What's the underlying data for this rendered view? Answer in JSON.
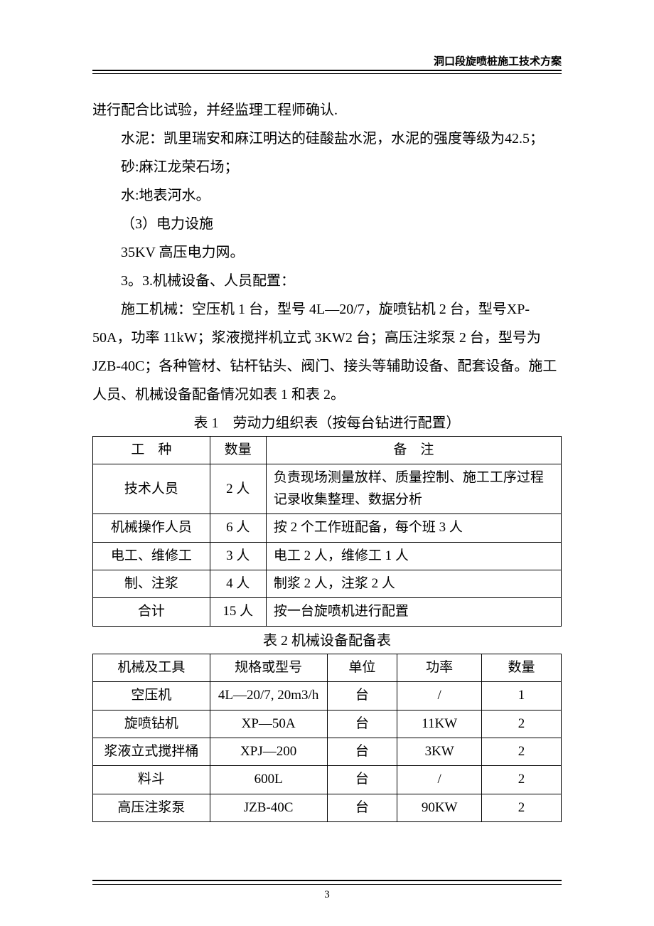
{
  "header": {
    "title": "洞口段旋喷桩施工技术方案"
  },
  "paragraphs": {
    "p1": "进行配合比试验，并经监理工程师确认.",
    "p2": "水泥：凯里瑞安和麻江明达的硅酸盐水泥，水泥的强度等级为42.5；",
    "p3": "砂:麻江龙荣石场；",
    "p4": "水:地表河水。",
    "p5": "（3）电力设施",
    "p6": "35KV 高压电力网。",
    "p7": "3。3.机械设备、人员配置：",
    "p8": "施工机械：空压机 1 台，型号 4L—20/7，旋喷钻机 2 台，型号XP-50A，功率 11kW；浆液搅拌机立式 3KW2 台；高压注浆泵 2 台，型号为 JZB-40C；各种管材、钻杆钻头、阀门、接头等辅助设备、配套设备。施工人员、机械设备配备情况如表 1 和表 2。"
  },
  "table1": {
    "caption": "表 1　劳动力组织表（按每台钻进行配置）",
    "headers": {
      "h1": "工　种",
      "h2": "数量",
      "h3": "备　注"
    },
    "rows": [
      {
        "type": "技术人员",
        "qty": "2 人",
        "remark": "负责现场测量放样、质量控制、施工工序过程记录收集整理、数据分析"
      },
      {
        "type": "机械操作人员",
        "qty": "6 人",
        "remark": "按 2 个工作班配备，每个班 3 人"
      },
      {
        "type": "电工、维修工",
        "qty": "3 人",
        "remark": "电工 2 人，维修工 1 人"
      },
      {
        "type": "制、注浆",
        "qty": "4 人",
        "remark": "制浆 2 人，注浆 2 人"
      },
      {
        "type": "合计",
        "qty": "15 人",
        "remark": "按一台旋喷机进行配置"
      }
    ]
  },
  "table2": {
    "caption": "表 2 机械设备配备表",
    "headers": {
      "h1": "机械及工具",
      "h2": "规格或型号",
      "h3": "单位",
      "h4": "功率",
      "h5": "数量"
    },
    "rows": [
      {
        "name": "空压机",
        "spec": "4L—20/7, 20m3/h",
        "unit": "台",
        "power": "/",
        "qty": "1"
      },
      {
        "name": "旋喷钻机",
        "spec": "XP—50A",
        "unit": "台",
        "power": "11KW",
        "qty": "2"
      },
      {
        "name": "浆液立式搅拌桶",
        "spec": "XPJ—200",
        "unit": "台",
        "power": "3KW",
        "qty": "2"
      },
      {
        "name": "料斗",
        "spec": "600L",
        "unit": "台",
        "power": "/",
        "qty": "2"
      },
      {
        "name": "高压注浆泵",
        "spec": "JZB-40C",
        "unit": "台",
        "power": "90KW",
        "qty": "2"
      }
    ]
  },
  "pageNumber": "3",
  "colors": {
    "text": "#000000",
    "background": "#ffffff",
    "border": "#000000"
  },
  "typography": {
    "body_fontsize": 20,
    "header_fontsize": 15,
    "table_fontsize": 19,
    "pagenum_fontsize": 15,
    "line_height": 2.0
  }
}
